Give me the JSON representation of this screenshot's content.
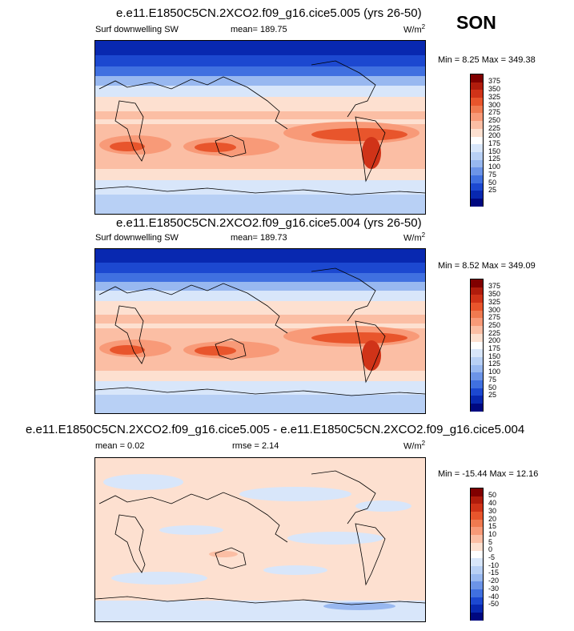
{
  "season": "SON",
  "panels": [
    {
      "title": "e.e11.E1850C5CN.2XCO2.f09_g16.cice5.005 (yrs 26-50)",
      "left_label": "Surf downwelling SW",
      "center_label": "mean= 189.75",
      "units": "W/m",
      "units_sup": "2",
      "minmax": "Min =   8.25 Max = 349.38"
    },
    {
      "title": "e.e11.E1850C5CN.2XCO2.f09_g16.cice5.004 (yrs 26-50)",
      "left_label": "Surf downwelling SW",
      "center_label": "mean= 189.73",
      "units": "W/m",
      "units_sup": "2",
      "minmax": "Min =   8.52 Max = 349.09"
    },
    {
      "title": "e.e11.E1850C5CN.2XCO2.f09_g16.cice5.005 - e.e11.E1850C5CN.2XCO2.f09_g16.cice5.004",
      "left_label": "mean =   0.02",
      "center_label": "rmse =   2.14",
      "units": "W/m",
      "units_sup": "2",
      "minmax": "Min = -15.44 Max =  12.16"
    }
  ],
  "colorbar_abs": {
    "labels": [
      "375",
      "350",
      "325",
      "300",
      "275",
      "250",
      "225",
      "200",
      "175",
      "150",
      "125",
      "100",
      "75",
      "50",
      "25"
    ],
    "colors": [
      "#800000",
      "#b01c0c",
      "#d03318",
      "#e8552c",
      "#f07a50",
      "#f89a78",
      "#fbbea4",
      "#fde0d0",
      "#ffffff",
      "#d8e6fa",
      "#b8d0f5",
      "#98b8f0",
      "#6c94e8",
      "#4070e0",
      "#1c48d0",
      "#0828b0",
      "#000880"
    ]
  },
  "colorbar_diff": {
    "labels": [
      "50",
      "40",
      "30",
      "20",
      "15",
      "10",
      "5",
      "0",
      "-5",
      "-10",
      "-15",
      "-20",
      "-30",
      "-40",
      "-50"
    ],
    "colors": [
      "#800000",
      "#b01c0c",
      "#d03318",
      "#e8552c",
      "#f07a50",
      "#f89a78",
      "#fbbea4",
      "#fde0d0",
      "#ffffff",
      "#d8e6fa",
      "#b8d0f5",
      "#98b8f0",
      "#6c94e8",
      "#4070e0",
      "#1c48d0",
      "#0828b0",
      "#000880"
    ]
  },
  "chart_data": [
    {
      "type": "heatmap",
      "title": "e.e11.E1850C5CN.2XCO2.f09_g16.cice5.005 (yrs 26-50)",
      "variable": "Surf downwelling SW",
      "units": "W/m2",
      "mean": 189.75,
      "min": 8.25,
      "max": 349.38,
      "contour_levels": [
        25,
        50,
        75,
        100,
        125,
        150,
        175,
        200,
        225,
        250,
        275,
        300,
        325,
        350,
        375
      ]
    },
    {
      "type": "heatmap",
      "title": "e.e11.E1850C5CN.2XCO2.f09_g16.cice5.004 (yrs 26-50)",
      "variable": "Surf downwelling SW",
      "units": "W/m2",
      "mean": 189.73,
      "min": 8.52,
      "max": 349.09,
      "contour_levels": [
        25,
        50,
        75,
        100,
        125,
        150,
        175,
        200,
        225,
        250,
        275,
        300,
        325,
        350,
        375
      ]
    },
    {
      "type": "heatmap",
      "title": "e.e11.E1850C5CN.2XCO2.f09_g16.cice5.005 - e.e11.E1850C5CN.2XCO2.f09_g16.cice5.004",
      "units": "W/m2",
      "mean": 0.02,
      "rmse": 2.14,
      "min": -15.44,
      "max": 12.16,
      "contour_levels": [
        -50,
        -40,
        -30,
        -20,
        -15,
        -10,
        -5,
        0,
        5,
        10,
        15,
        20,
        30,
        40,
        50
      ]
    }
  ]
}
